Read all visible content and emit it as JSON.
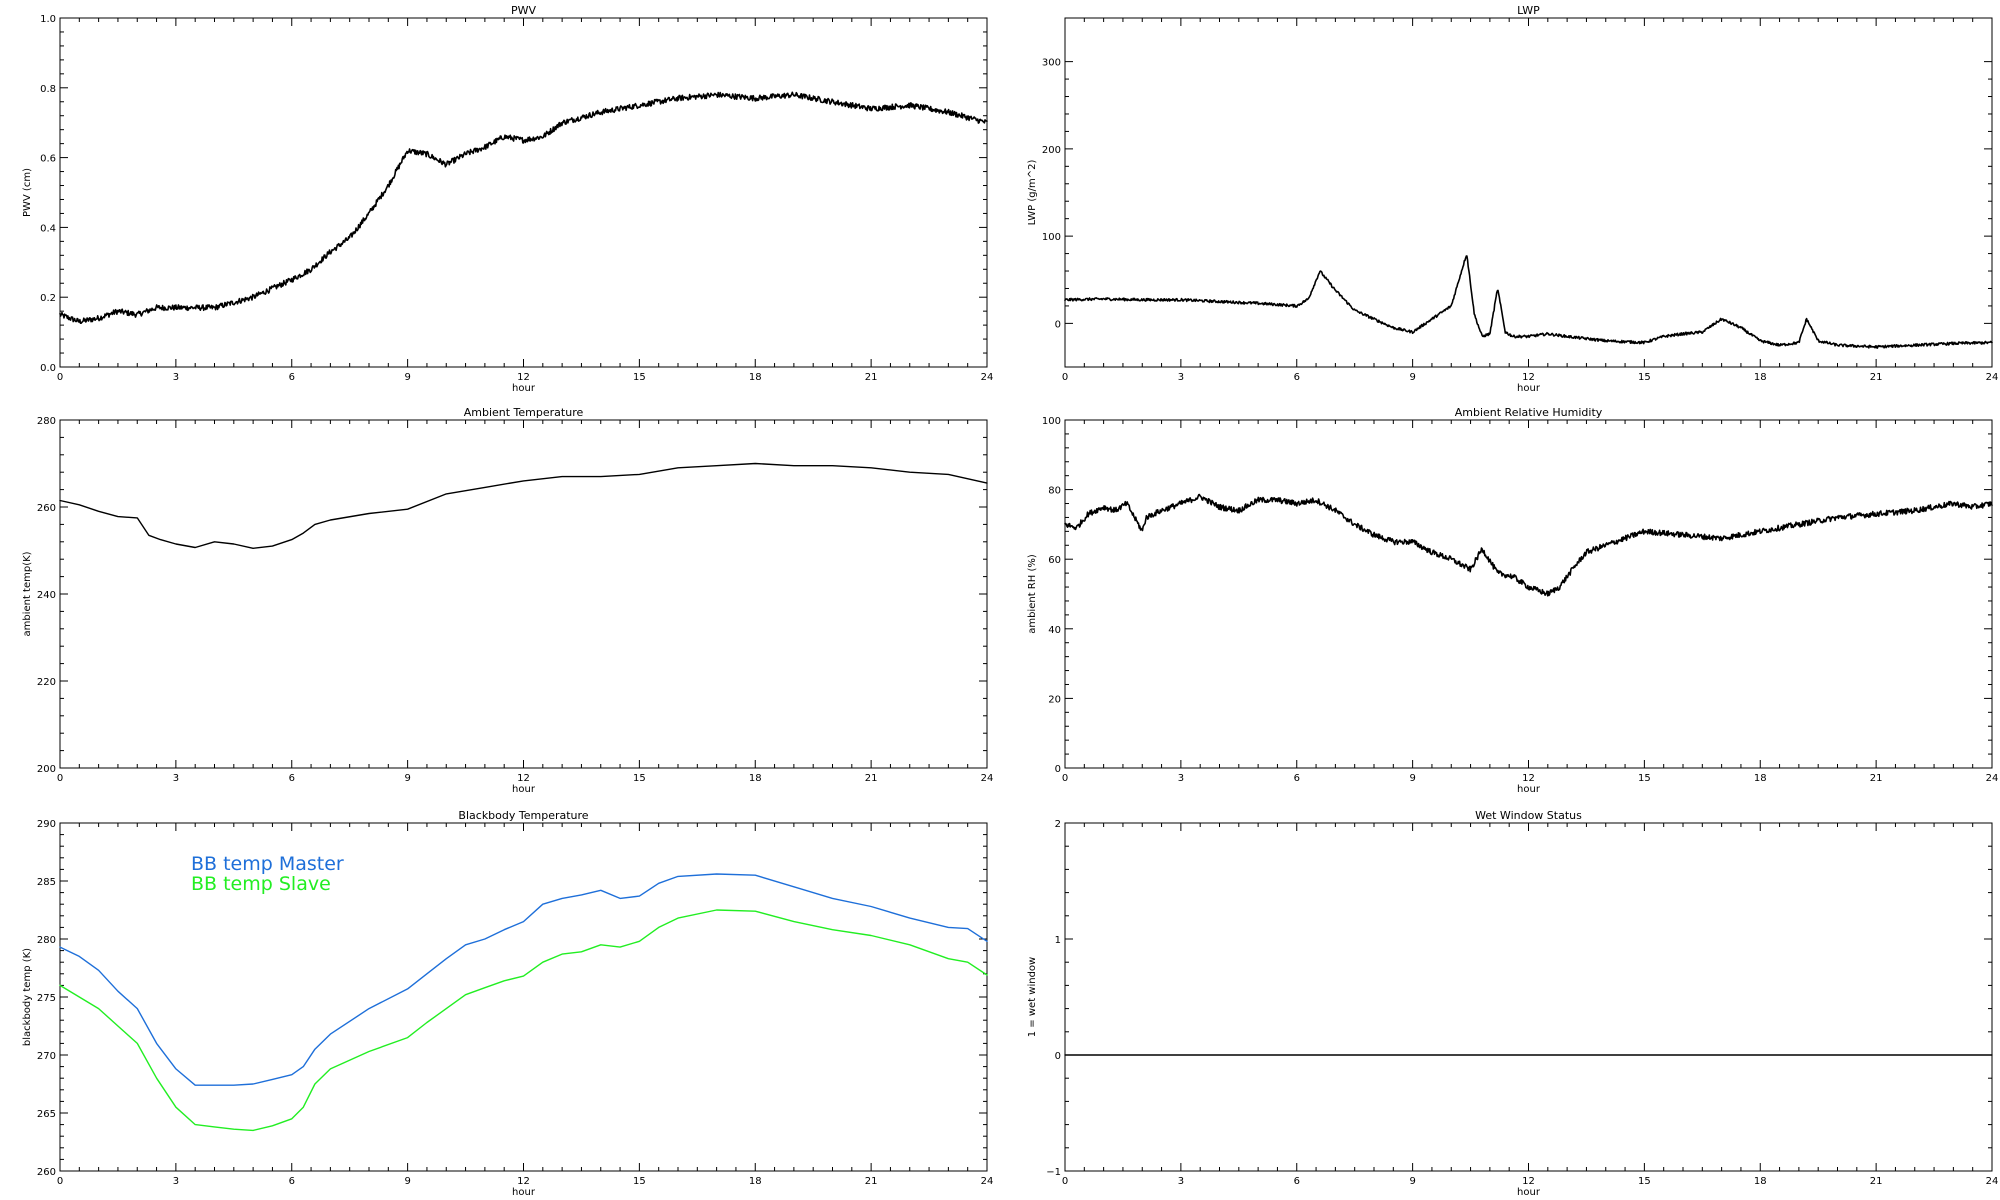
{
  "chart_data": [
    {
      "type": "line",
      "title": "PWV",
      "xlabel": "hour",
      "ylabel": "PWV (cm)",
      "xlim": [
        0,
        24
      ],
      "ylim": [
        0,
        1.0
      ],
      "xticks": [
        0,
        3,
        6,
        9,
        12,
        15,
        18,
        21,
        24
      ],
      "yticks": [
        0.0,
        0.2,
        0.4,
        0.6,
        0.8,
        1.0
      ],
      "ytick_labels": [
        "0.0",
        "0.2",
        "0.4",
        "0.6",
        "0.8",
        "1.0"
      ],
      "series": [
        {
          "color": "#000000",
          "noise": 0.008,
          "x": [
            0,
            0.5,
            1,
            1.5,
            2,
            2.5,
            3,
            4,
            5,
            6,
            6.5,
            7,
            7.5,
            8,
            8.5,
            9,
            9.5,
            10,
            10.5,
            11,
            11.5,
            12,
            12.5,
            13,
            14,
            15,
            16,
            17,
            18,
            19,
            20,
            21,
            22,
            23,
            24
          ],
          "y": [
            0.15,
            0.13,
            0.14,
            0.16,
            0.15,
            0.17,
            0.17,
            0.17,
            0.2,
            0.25,
            0.28,
            0.33,
            0.37,
            0.44,
            0.52,
            0.62,
            0.61,
            0.58,
            0.61,
            0.63,
            0.66,
            0.65,
            0.66,
            0.7,
            0.73,
            0.75,
            0.77,
            0.78,
            0.77,
            0.78,
            0.76,
            0.74,
            0.75,
            0.73,
            0.7
          ]
        }
      ]
    },
    {
      "type": "line",
      "title": "LWP",
      "xlabel": "hour",
      "ylabel": "LWP (g/m^2)",
      "xlim": [
        0,
        24
      ],
      "ylim": [
        -50,
        350
      ],
      "xticks": [
        0,
        3,
        6,
        9,
        12,
        15,
        18,
        21,
        24
      ],
      "yticks": [
        0,
        100,
        200,
        300
      ],
      "ytick_labels": [
        "0",
        "100",
        "200",
        "300"
      ],
      "series": [
        {
          "color": "#000000",
          "noise": 1.5,
          "x": [
            0,
            1,
            2,
            3,
            4,
            5,
            6,
            6.3,
            6.6,
            7,
            7.5,
            8,
            8.5,
            9,
            9.5,
            10,
            10.2,
            10.4,
            10.6,
            10.8,
            11,
            11.2,
            11.4,
            11.6,
            12,
            12.5,
            13,
            14,
            15,
            15.5,
            16,
            16.5,
            17,
            17.5,
            18,
            18.5,
            19,
            19.2,
            19.5,
            20,
            21,
            22,
            23,
            24
          ],
          "y": [
            27,
            28,
            27,
            27,
            25,
            23,
            20,
            28,
            60,
            38,
            15,
            5,
            -5,
            -10,
            5,
            20,
            50,
            80,
            10,
            -15,
            -12,
            40,
            -10,
            -15,
            -15,
            -12,
            -15,
            -20,
            -22,
            -15,
            -12,
            -10,
            5,
            -5,
            -20,
            -25,
            -22,
            5,
            -20,
            -25,
            -27,
            -25,
            -23,
            -22
          ]
        }
      ]
    },
    {
      "type": "line",
      "title": "Ambient Temperature",
      "xlabel": "hour",
      "ylabel": "ambient temp(K)",
      "xlim": [
        0,
        24
      ],
      "ylim": [
        200,
        280
      ],
      "xticks": [
        0,
        3,
        6,
        9,
        12,
        15,
        18,
        21,
        24
      ],
      "yticks": [
        200,
        220,
        240,
        260,
        280
      ],
      "ytick_labels": [
        "200",
        "220",
        "240",
        "260",
        "280"
      ],
      "series": [
        {
          "color": "#000000",
          "noise": 0,
          "x": [
            0,
            0.5,
            1,
            1.5,
            2,
            2.3,
            2.6,
            3,
            3.5,
            4,
            4.5,
            5,
            5.5,
            6,
            6.3,
            6.6,
            7,
            8,
            9,
            10,
            11,
            12,
            13,
            14,
            15,
            16,
            17,
            18,
            19,
            20,
            21,
            22,
            23,
            24
          ],
          "y": [
            261.5,
            260.5,
            259,
            257.8,
            257.5,
            253.5,
            252.5,
            251.5,
            250.7,
            252,
            251.5,
            250.5,
            251,
            252.5,
            254,
            256,
            257,
            258.5,
            259.5,
            263,
            264.5,
            266,
            267,
            267,
            267.5,
            269,
            269.5,
            270,
            269.5,
            269.5,
            269,
            268,
            267.5,
            265.5
          ]
        }
      ]
    },
    {
      "type": "line",
      "title": "Ambient Relative Humidity",
      "xlabel": "hour",
      "ylabel": "ambient RH (%)",
      "xlim": [
        0,
        24
      ],
      "ylim": [
        0,
        100
      ],
      "xticks": [
        0,
        3,
        6,
        9,
        12,
        15,
        18,
        21,
        24
      ],
      "yticks": [
        0,
        20,
        40,
        60,
        80,
        100
      ],
      "ytick_labels": [
        "0",
        "20",
        "40",
        "60",
        "80",
        "100"
      ],
      "series": [
        {
          "color": "#000000",
          "noise": 0.8,
          "x": [
            0,
            0.3,
            0.6,
            1,
            1.3,
            1.6,
            2,
            2.1,
            2.5,
            3,
            3.5,
            4,
            4.5,
            5,
            5.5,
            6,
            6.5,
            7,
            7.5,
            8,
            8.5,
            9,
            9.5,
            10,
            10.5,
            10.8,
            11.2,
            11.6,
            12,
            12.5,
            12.8,
            13.2,
            13.5,
            14,
            14.5,
            15,
            16,
            17,
            18,
            19,
            20,
            21,
            22,
            22.5,
            23,
            23.5,
            24
          ],
          "y": [
            70,
            69,
            73,
            75,
            74,
            76,
            68,
            72,
            74,
            76,
            78,
            75,
            74,
            77,
            77,
            76,
            77,
            74,
            70,
            67,
            65,
            65,
            62,
            60,
            57,
            63,
            56,
            55,
            52,
            50,
            52,
            58,
            62,
            64,
            66,
            68,
            67,
            66,
            68,
            70,
            72,
            73,
            74,
            75,
            76,
            75,
            76
          ]
        }
      ]
    },
    {
      "type": "line",
      "title": "Blackbody Temperature",
      "xlabel": "hour",
      "ylabel": "blackbody temp (K)",
      "xlim": [
        0,
        24
      ],
      "ylim": [
        260,
        290
      ],
      "xticks": [
        0,
        3,
        6,
        9,
        12,
        15,
        18,
        21,
        24
      ],
      "yticks": [
        260,
        265,
        270,
        275,
        280,
        285,
        290
      ],
      "ytick_labels": [
        "260",
        "265",
        "270",
        "275",
        "280",
        "285",
        "290"
      ],
      "legend_position": "upper-left",
      "series": [
        {
          "name": "BB temp Master",
          "color": "#1e6fd9",
          "noise": 0,
          "x": [
            0,
            0.5,
            1,
            1.5,
            2,
            2.5,
            3,
            3.5,
            4,
            4.5,
            5,
            5.5,
            6,
            6.3,
            6.6,
            7,
            8,
            9,
            9.5,
            10,
            10.5,
            11,
            11.5,
            12,
            12.5,
            13,
            13.5,
            14,
            14.5,
            15,
            15.5,
            16,
            17,
            18,
            19,
            20,
            21,
            22,
            23,
            23.5,
            24
          ],
          "y": [
            279.3,
            278.5,
            277.3,
            275.5,
            274,
            271,
            268.8,
            267.4,
            267.4,
            267.4,
            267.5,
            267.9,
            268.3,
            269,
            270.5,
            271.8,
            274,
            275.7,
            277,
            278.3,
            279.5,
            280,
            280.8,
            281.5,
            283,
            283.5,
            283.8,
            284.2,
            283.5,
            283.7,
            284.8,
            285.4,
            285.6,
            285.5,
            284.5,
            283.5,
            282.8,
            281.8,
            281,
            280.9,
            279.8
          ]
        },
        {
          "name": "BB temp Slave",
          "color": "#22ee22",
          "noise": 0,
          "x": [
            0,
            0.5,
            1,
            1.5,
            2,
            2.5,
            3,
            3.5,
            4,
            4.5,
            5,
            5.5,
            6,
            6.3,
            6.6,
            7,
            8,
            9,
            9.5,
            10,
            10.5,
            11,
            11.5,
            12,
            12.5,
            13,
            13.5,
            14,
            14.5,
            15,
            15.5,
            16,
            17,
            18,
            19,
            20,
            21,
            22,
            23,
            23.5,
            24
          ],
          "y": [
            276,
            275,
            274,
            272.5,
            271,
            268,
            265.5,
            264,
            263.8,
            263.6,
            263.5,
            263.9,
            264.5,
            265.5,
            267.5,
            268.8,
            270.3,
            271.5,
            272.8,
            274,
            275.2,
            275.8,
            276.4,
            276.8,
            278,
            278.7,
            278.9,
            279.5,
            279.3,
            279.8,
            281,
            281.8,
            282.5,
            282.4,
            281.5,
            280.8,
            280.3,
            279.5,
            278.3,
            278,
            276.9
          ]
        }
      ]
    },
    {
      "type": "line",
      "title": "Wet Window Status",
      "xlabel": "hour",
      "ylabel": "1 = wet window",
      "xlim": [
        0,
        24
      ],
      "ylim": [
        -1,
        2
      ],
      "xticks": [
        0,
        3,
        6,
        9,
        12,
        15,
        18,
        21,
        24
      ],
      "yticks": [
        -1,
        0,
        1,
        2
      ],
      "ytick_labels": [
        "−1",
        "0",
        "1",
        "2"
      ],
      "series": [
        {
          "color": "#000000",
          "noise": 0,
          "x": [
            0,
            24
          ],
          "y": [
            0,
            0
          ]
        }
      ]
    }
  ]
}
